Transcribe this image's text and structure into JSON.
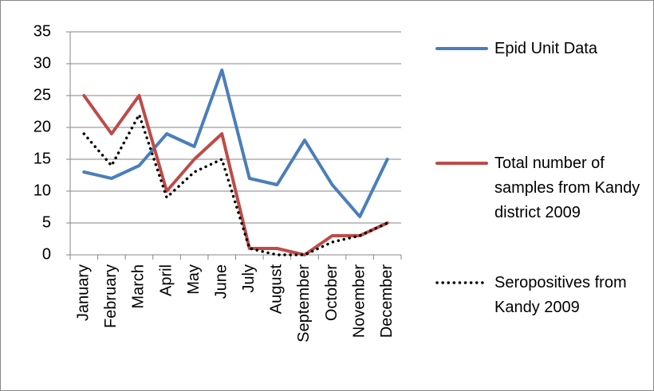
{
  "chart_data": {
    "type": "line",
    "categories": [
      "January",
      "February",
      "March",
      "April",
      "May",
      "June",
      "July",
      "August",
      "September",
      "October",
      "November",
      "December"
    ],
    "series": [
      {
        "name": "Epid Unit Data",
        "color": "#4a7ebb",
        "style": "solid",
        "values": [
          13,
          12,
          14,
          19,
          17,
          29,
          12,
          11,
          18,
          11,
          6,
          15
        ]
      },
      {
        "name": "Total number of samples from Kandy district 2009",
        "color": "#be4b48",
        "style": "solid",
        "values": [
          25,
          19,
          25,
          10,
          15,
          19,
          1,
          1,
          0,
          3,
          3,
          5
        ]
      },
      {
        "name": "Seropositives from Kandy 2009",
        "color": "#000000",
        "style": "dotted",
        "values": [
          19,
          14,
          22,
          9,
          13,
          15,
          1,
          0,
          0,
          2,
          3,
          5
        ]
      }
    ],
    "ylim": [
      0,
      35
    ],
    "yticks": [
      0,
      5,
      10,
      15,
      20,
      25,
      30,
      35
    ],
    "grid": true,
    "legend": "right"
  }
}
